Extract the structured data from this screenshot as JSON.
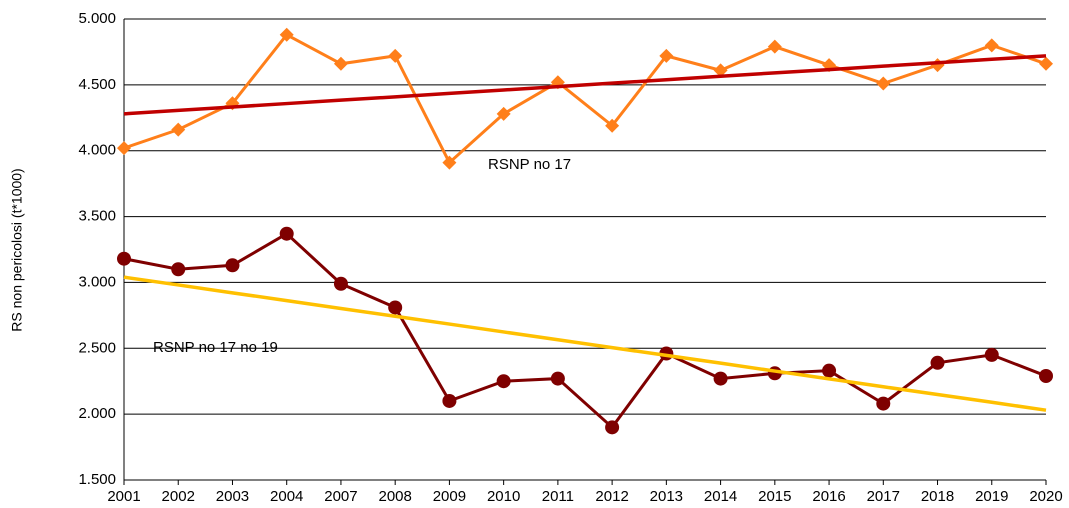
{
  "chart_data": {
    "type": "line",
    "y_label": "RS non pericolosi (t*1000)",
    "categories": [
      "2001",
      "2002",
      "2003",
      "2004",
      "2007",
      "2008",
      "2009",
      "2010",
      "2011",
      "2012",
      "2013",
      "2014",
      "2015",
      "2016",
      "2017",
      "2018",
      "2019",
      "2020"
    ],
    "series": [
      {
        "name": "RSNP  no 17",
        "color": "#ff7f1a",
        "marker": "diamond",
        "values": [
          4020,
          4160,
          4360,
          4880,
          4660,
          4720,
          3910,
          4280,
          4520,
          4190,
          4720,
          4610,
          4790,
          4650,
          4510,
          4650,
          4800,
          4660
        ]
      },
      {
        "color": "#c00000",
        "marker": "none",
        "values": [
          4280,
          4306,
          4332,
          4358,
          4384,
          4409,
          4435,
          4461,
          4487,
          4513,
          4539,
          4565,
          4591,
          4616,
          4642,
          4668,
          4694,
          4720
        ]
      },
      {
        "name": "RSNP  no 17 no 19",
        "color": "#7f0000",
        "marker": "circle",
        "values": [
          3180,
          3100,
          3130,
          3370,
          2990,
          2810,
          2100,
          2250,
          2270,
          1900,
          2460,
          2270,
          2310,
          2330,
          2080,
          2390,
          2450,
          2290
        ]
      },
      {
        "color": "#ffc000",
        "marker": "none",
        "values": [
          3040,
          2981,
          2921,
          2862,
          2802,
          2743,
          2684,
          2624,
          2565,
          2505,
          2446,
          2387,
          2327,
          2268,
          2208,
          2149,
          2090,
          2030
        ]
      }
    ],
    "ylim": [
      1500,
      5000
    ],
    "yticks": [
      {
        "value": 1500,
        "label": "1.500"
      },
      {
        "value": 2000,
        "label": "2.000"
      },
      {
        "value": 2500,
        "label": "2.500"
      },
      {
        "value": 3000,
        "label": "3.000"
      },
      {
        "value": 3500,
        "label": "3.500"
      },
      {
        "value": 4000,
        "label": "4.000"
      },
      {
        "value": 4500,
        "label": "4.500"
      },
      {
        "value": 5000,
        "label": "5.000"
      }
    ],
    "grid": true
  }
}
